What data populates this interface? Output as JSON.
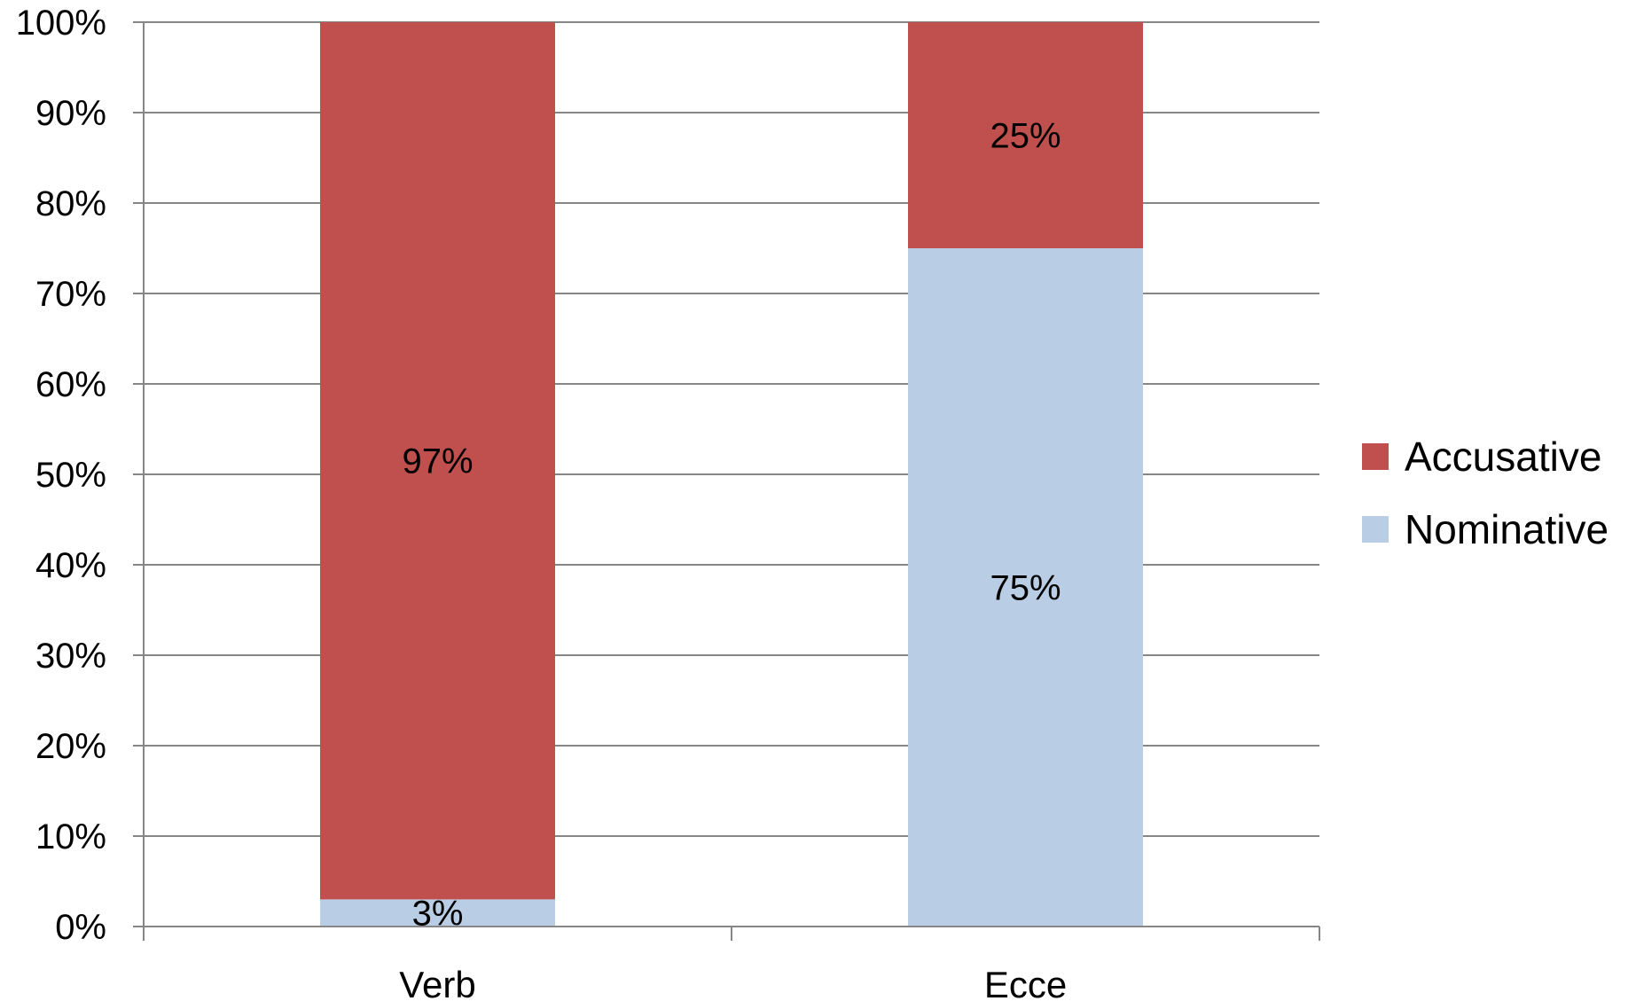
{
  "chart_data": {
    "type": "bar",
    "stacked": true,
    "percent_stacked": true,
    "categories": [
      "Verb",
      "Ecce"
    ],
    "series": [
      {
        "name": "Nominative",
        "values": [
          3,
          75
        ],
        "labels": [
          "3%",
          "75%"
        ],
        "color": "#b9cde5"
      },
      {
        "name": "Accusative",
        "values": [
          97,
          25
        ],
        "labels": [
          "97%",
          "25%"
        ],
        "color": "#c0504d"
      }
    ],
    "yticks": [
      "0%",
      "10%",
      "20%",
      "30%",
      "40%",
      "50%",
      "60%",
      "70%",
      "80%",
      "90%",
      "100%"
    ],
    "ylim": [
      0,
      100
    ],
    "grid": true,
    "legend": {
      "placement": "right",
      "order": [
        "Accusative",
        "Nominative"
      ]
    },
    "title": "",
    "xlabel": "",
    "ylabel": ""
  }
}
